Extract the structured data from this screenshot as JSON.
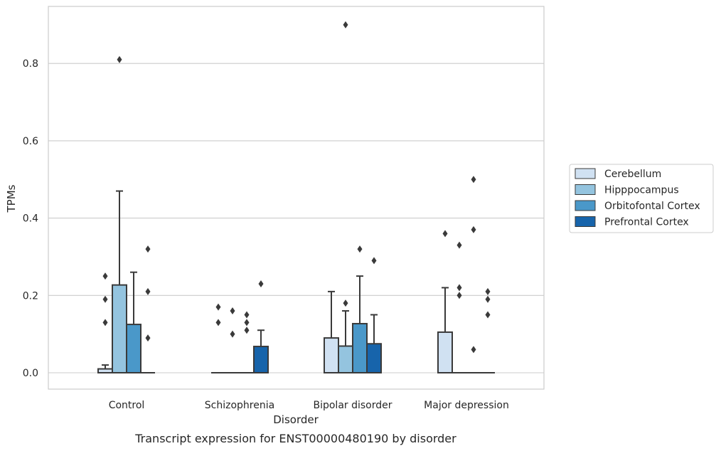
{
  "chart_data": {
    "type": "box",
    "caption": "Transcript expression for ENST00000480190 by disorder",
    "xlabel": "Disorder",
    "ylabel": "TPMs",
    "ylim": [
      -0.043,
      0.945
    ],
    "yticks": [
      0.0,
      0.2,
      0.4,
      0.6,
      0.8
    ],
    "ytick_labels": [
      "0.0",
      "0.2",
      "0.4",
      "0.6",
      "0.8"
    ],
    "grid": "horizontal",
    "legend_position": "right",
    "categories": [
      "Control",
      "Schizophrenia",
      "Bipolar disorder",
      "Major depression"
    ],
    "series": [
      {
        "name": "Cerebellum",
        "color": "#d0e1f2",
        "boxes": [
          {
            "q1": 0.0,
            "median": 0.0,
            "q3": 0.01,
            "whisker_low": 0.0,
            "whisker_high": 0.02,
            "outliers": [
              0.13,
              0.19,
              0.25
            ]
          },
          {
            "q1": 0.0,
            "median": 0.0,
            "q3": 0.0,
            "whisker_low": 0.0,
            "whisker_high": 0.0,
            "outliers": [
              0.13,
              0.17
            ]
          },
          {
            "q1": 0.0,
            "median": 0.0,
            "q3": 0.09,
            "whisker_low": 0.0,
            "whisker_high": 0.21,
            "outliers": []
          },
          {
            "q1": 0.0,
            "median": 0.0,
            "q3": 0.105,
            "whisker_low": 0.0,
            "whisker_high": 0.22,
            "outliers": [
              0.36
            ]
          }
        ]
      },
      {
        "name": "Hipppocampus",
        "color": "#94c4df",
        "boxes": [
          {
            "q1": 0.0,
            "median": 0.0,
            "q3": 0.227,
            "whisker_low": 0.0,
            "whisker_high": 0.47,
            "outliers": [
              0.81
            ]
          },
          {
            "q1": 0.0,
            "median": 0.0,
            "q3": 0.0,
            "whisker_low": 0.0,
            "whisker_high": 0.0,
            "outliers": [
              0.1,
              0.16
            ]
          },
          {
            "q1": 0.0,
            "median": 0.0,
            "q3": 0.069,
            "whisker_low": 0.0,
            "whisker_high": 0.16,
            "outliers": [
              0.18,
              0.9
            ]
          },
          {
            "q1": 0.0,
            "median": 0.0,
            "q3": 0.0,
            "whisker_low": 0.0,
            "whisker_high": 0.0,
            "outliers": [
              0.2,
              0.22,
              0.33
            ]
          }
        ]
      },
      {
        "name": "Orbitofontal Cortex",
        "color": "#4a98c9",
        "boxes": [
          {
            "q1": 0.0,
            "median": 0.0,
            "q3": 0.125,
            "whisker_low": 0.0,
            "whisker_high": 0.26,
            "outliers": []
          },
          {
            "q1": 0.0,
            "median": 0.0,
            "q3": 0.0,
            "whisker_low": 0.0,
            "whisker_high": 0.0,
            "outliers": [
              0.11,
              0.13,
              0.15
            ]
          },
          {
            "q1": 0.0,
            "median": 0.0,
            "q3": 0.127,
            "whisker_low": 0.0,
            "whisker_high": 0.25,
            "outliers": [
              0.32
            ]
          },
          {
            "q1": 0.0,
            "median": 0.0,
            "q3": 0.0,
            "whisker_low": 0.0,
            "whisker_high": 0.0,
            "outliers": [
              0.06,
              0.37,
              0.5
            ]
          }
        ]
      },
      {
        "name": "Prefrontal Cortex",
        "color": "#1764ab",
        "boxes": [
          {
            "q1": 0.0,
            "median": 0.0,
            "q3": 0.0,
            "whisker_low": 0.0,
            "whisker_high": 0.0,
            "outliers": [
              0.09,
              0.21,
              0.32
            ]
          },
          {
            "q1": 0.0,
            "median": 0.0,
            "q3": 0.068,
            "whisker_low": 0.0,
            "whisker_high": 0.11,
            "outliers": [
              0.23
            ]
          },
          {
            "q1": 0.0,
            "median": 0.0,
            "q3": 0.075,
            "whisker_low": 0.0,
            "whisker_high": 0.15,
            "outliers": [
              0.29
            ]
          },
          {
            "q1": 0.0,
            "median": 0.0,
            "q3": 0.0,
            "whisker_low": 0.0,
            "whisker_high": 0.0,
            "outliers": [
              0.15,
              0.19,
              0.21
            ]
          }
        ]
      }
    ]
  }
}
